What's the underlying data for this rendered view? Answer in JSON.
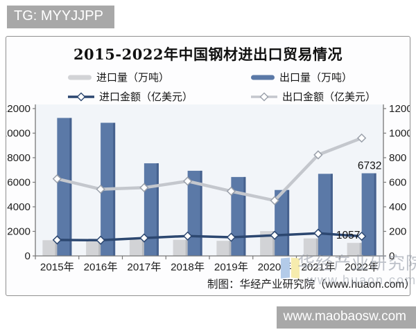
{
  "badges": {
    "top": "TG: MYYJJPP",
    "bottom": "www.maobaosw.com"
  },
  "chart": {
    "title": "2015-2022年中国钢材进出口贸易情况",
    "caption": "制图：华经产业研究院（www.huaon.com）",
    "watermark": {
      "name": "华经产业研究院",
      "site": "www.huaon.com"
    },
    "legend": [
      {
        "label": "进口量（万吨）",
        "type": "bar",
        "color": "#d2d3d6"
      },
      {
        "label": "出口量（万吨）",
        "type": "bar",
        "color": "#5b79a7"
      },
      {
        "label": "进口金额（亿美元）",
        "type": "line",
        "color": "#2c4770",
        "marker_stroke": "#2c4770"
      },
      {
        "label": "出口金额（亿美元）",
        "type": "line",
        "color": "#c4c7cd",
        "marker_stroke": "#9aa0aa"
      }
    ]
  },
  "chart_data": {
    "type": "combo",
    "title": "2015-2022年中国钢材进出口贸易情况",
    "categories": [
      "2015年",
      "2016年",
      "2017年",
      "2018年",
      "2019年",
      "2020年",
      "2021年",
      "2022年"
    ],
    "series": [
      {
        "name": "进口量（万吨）",
        "kind": "bar",
        "axis": "left",
        "color": "#d2d3d6",
        "edge_color": "#b9bbc0",
        "values": [
          1278,
          1320,
          1330,
          1315,
          1230,
          2023,
          1427,
          1057
        ]
      },
      {
        "name": "出口量（万吨）",
        "kind": "bar",
        "axis": "left",
        "color": "#5b79a7",
        "edge_color": "#46618e",
        "values": [
          11240,
          10843,
          7543,
          6934,
          6429,
          5367,
          6690,
          6732
        ]
      },
      {
        "name": "进口金额（亿美元）",
        "kind": "line",
        "axis": "right",
        "color": "#2c4770",
        "marker": "diamond",
        "marker_stroke": "#2c4770",
        "values": [
          130,
          128,
          146,
          162,
          152,
          168,
          185,
          160
        ]
      },
      {
        "name": "出口金额（亿美元）",
        "kind": "line",
        "axis": "right",
        "color": "#c4c7cd",
        "marker": "diamond",
        "marker_stroke": "#9aa0aa",
        "values": [
          628,
          543,
          556,
          609,
          527,
          451,
          823,
          960
        ]
      }
    ],
    "left_axis": {
      "min": 0,
      "max": 12000,
      "step": 2000,
      "ticks": [
        "0",
        "2000",
        "4000",
        "6000",
        "8000",
        "10000",
        "12000"
      ]
    },
    "right_axis": {
      "min": 0,
      "max": 1200,
      "step": 200,
      "ticks": [
        "0",
        "200",
        "400",
        "600",
        "800",
        "1000",
        "1200"
      ]
    },
    "data_labels": [
      {
        "text": "6732",
        "series": "出口量（万吨）",
        "category": "2022年"
      },
      {
        "text": "1057",
        "series": "进口量（万吨）",
        "category": "2022年"
      }
    ],
    "legend_position": "top",
    "grid": false
  }
}
